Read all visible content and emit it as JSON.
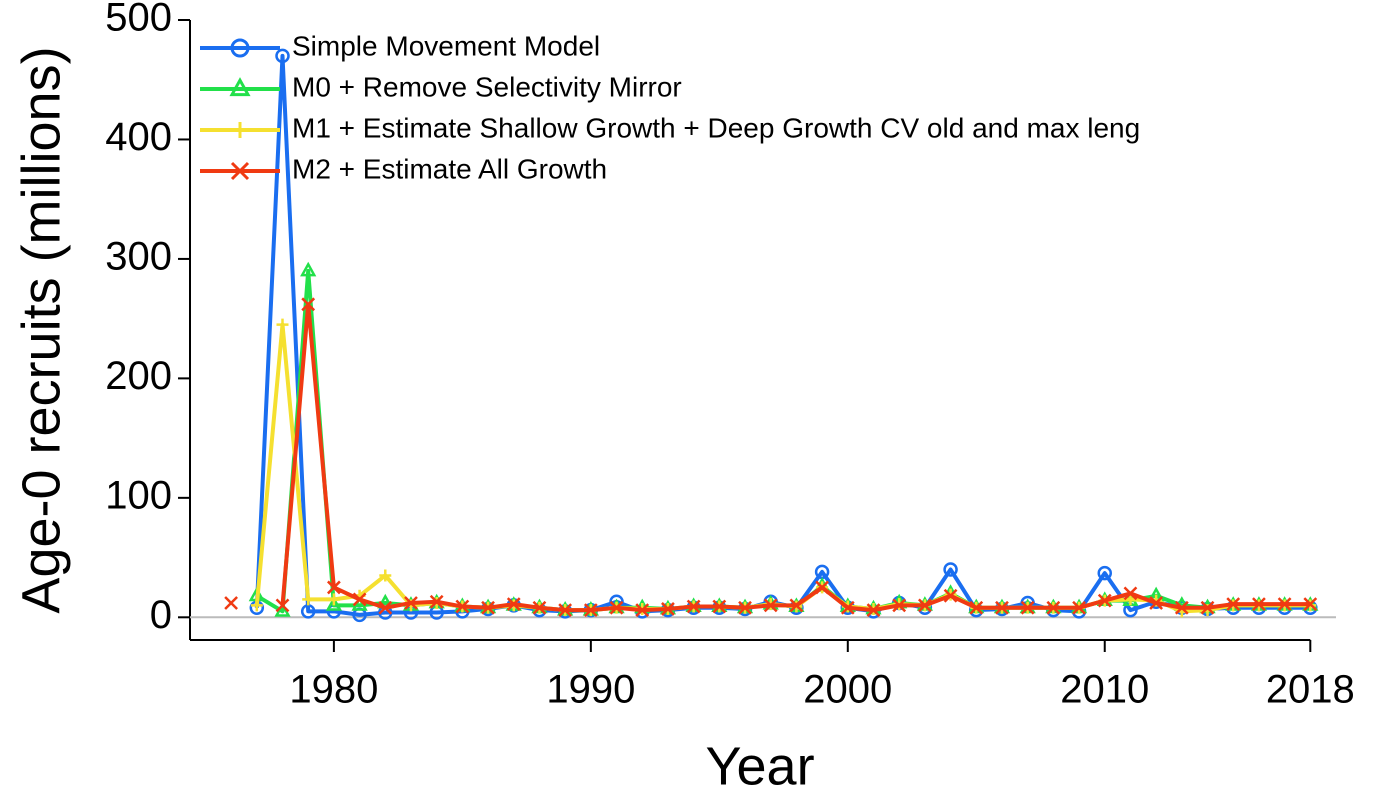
{
  "chart_data": {
    "type": "line",
    "xlabel": "Year",
    "ylabel": "Age-0 recruits (millions)",
    "x": [
      1976,
      1977,
      1978,
      1979,
      1980,
      1981,
      1982,
      1983,
      1984,
      1985,
      1986,
      1987,
      1988,
      1989,
      1990,
      1991,
      1992,
      1993,
      1994,
      1995,
      1996,
      1997,
      1998,
      1999,
      2000,
      2001,
      2002,
      2003,
      2004,
      2005,
      2006,
      2007,
      2008,
      2009,
      2010,
      2011,
      2012,
      2013,
      2014,
      2015,
      2016,
      2017,
      2018
    ],
    "series": [
      {
        "name": "Simple Movement Model",
        "color": "#1a6ef0",
        "marker": "circle",
        "values": [
          null,
          8,
          470,
          5,
          5,
          2,
          4,
          4,
          4,
          5,
          7,
          10,
          6,
          5,
          6,
          13,
          5,
          6,
          8,
          8,
          7,
          13,
          8,
          38,
          8,
          5,
          12,
          8,
          40,
          6,
          7,
          12,
          6,
          5,
          37,
          6,
          13,
          8,
          7,
          8,
          8,
          8,
          8
        ]
      },
      {
        "name": "M0 + Remove Selectivity Mirror",
        "color": "#22e04a",
        "marker": "triangle",
        "values": [
          null,
          18,
          5,
          290,
          10,
          10,
          12,
          10,
          12,
          9,
          8,
          10,
          8,
          6,
          6,
          8,
          8,
          7,
          9,
          9,
          8,
          11,
          9,
          26,
          9,
          7,
          12,
          10,
          20,
          8,
          8,
          8,
          8,
          8,
          14,
          14,
          18,
          10,
          8,
          10,
          10,
          10,
          10
        ]
      },
      {
        "name": "M1 + Estimate Shallow Growth + Deep Growth CV old and max leng",
        "color": "#f5e030",
        "marker": "plus",
        "values": [
          null,
          10,
          245,
          15,
          15,
          18,
          35,
          10,
          12,
          9,
          8,
          10,
          8,
          6,
          6,
          8,
          7,
          7,
          9,
          9,
          8,
          11,
          9,
          25,
          9,
          7,
          11,
          10,
          19,
          8,
          8,
          8,
          8,
          8,
          14,
          15,
          14,
          5,
          6,
          10,
          10,
          10,
          10
        ]
      },
      {
        "name": "M2 + Estimate All Growth",
        "color": "#f03a12",
        "marker": "cross",
        "values": [
          12,
          null,
          10,
          262,
          25,
          15,
          8,
          12,
          13,
          9,
          8,
          11,
          8,
          6,
          6,
          8,
          6,
          7,
          9,
          9,
          8,
          10,
          10,
          25,
          8,
          6,
          10,
          10,
          18,
          8,
          8,
          8,
          8,
          8,
          14,
          20,
          12,
          8,
          8,
          11,
          11,
          11,
          11
        ]
      }
    ],
    "xlim": [
      1974.4,
      2019
    ],
    "ylim": [
      -19,
      500
    ],
    "xticks": [
      1980,
      1990,
      2000,
      2010,
      2018
    ],
    "yticks": [
      0,
      100,
      200,
      300,
      400,
      500
    ],
    "hline": 0,
    "legend": "top-left"
  }
}
